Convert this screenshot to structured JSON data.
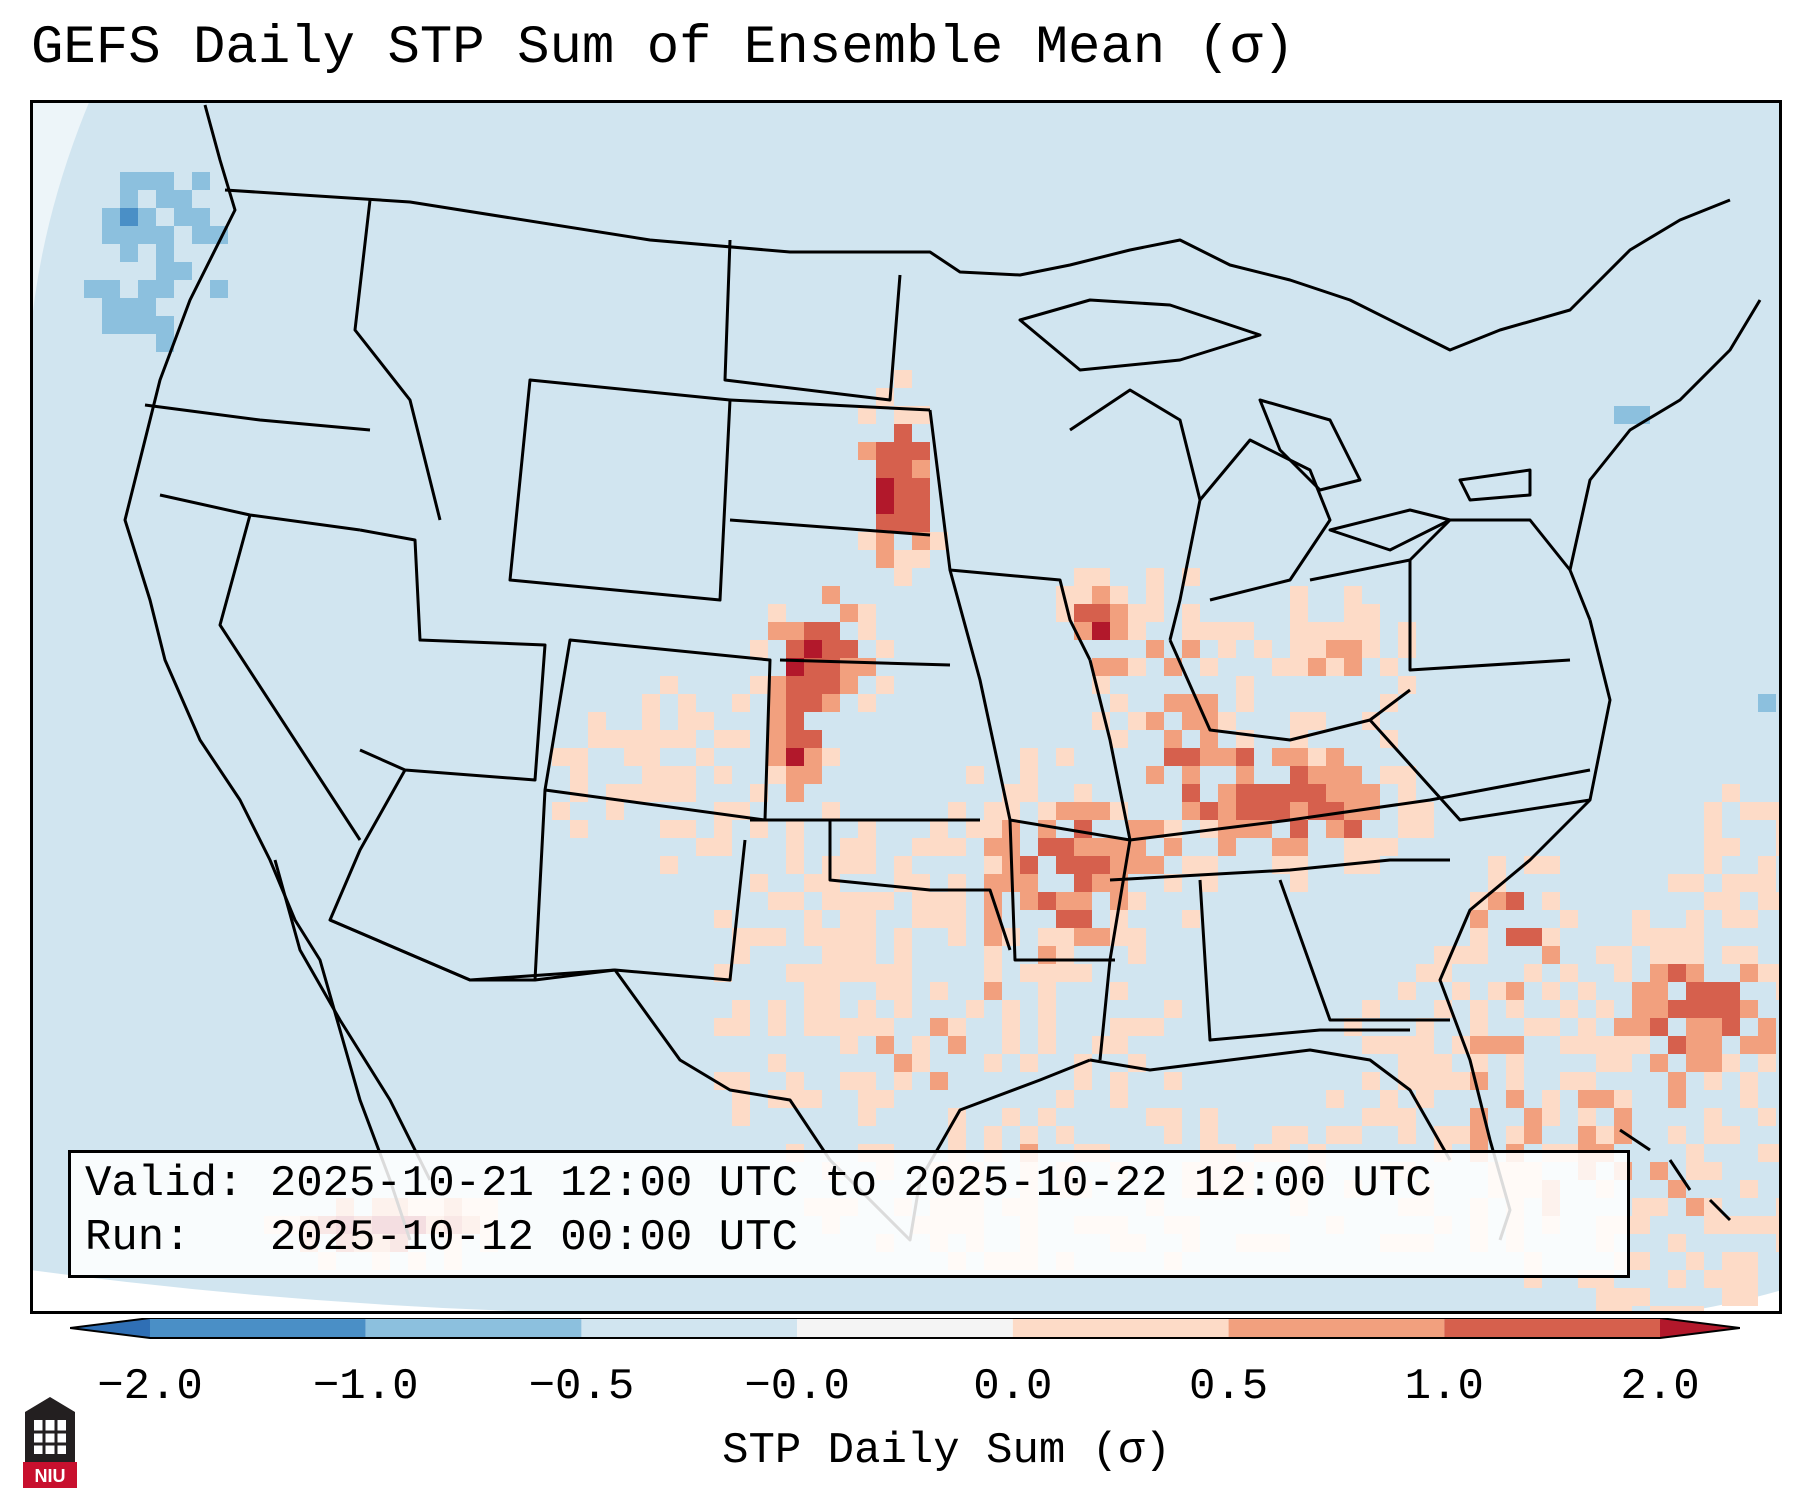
{
  "title": "GEFS Daily STP Sum of Ensemble Mean (σ)",
  "info": {
    "valid_label": "Valid:",
    "valid_value": "2025-10-21 12:00 UTC to 2025-10-22 12:00 UTC",
    "run_label": "Run:",
    "run_value": "2025-10-12 00:00 UTC"
  },
  "colorbar": {
    "label": "STP Daily Sum (σ)",
    "ticks": [
      "−2.0",
      "−1.0",
      "−0.5",
      "−0.0",
      "0.0",
      "0.5",
      "1.0",
      "2.0"
    ],
    "bins": [
      {
        "from": -2.0,
        "to": -1.0,
        "color": "#4a8fc6"
      },
      {
        "from": -1.0,
        "to": -0.5,
        "color": "#8cc0de"
      },
      {
        "from": -0.5,
        "to": -0.0,
        "color": "#d1e5f0"
      },
      {
        "from": -0.0,
        "to": 0.0,
        "color": "#f4f4f4"
      },
      {
        "from": 0.0,
        "to": 0.5,
        "color": "#fddbc7"
      },
      {
        "from": 0.5,
        "to": 1.0,
        "color": "#f2a07e"
      },
      {
        "from": 1.0,
        "to": 2.0,
        "color": "#d6604d"
      }
    ],
    "under_color": "#2f6fb5",
    "over_color": "#b2182b"
  },
  "map": {
    "region": "Continental United States",
    "background_color": "#d1e5f0",
    "features": [
      {
        "name": "central-plains",
        "value": 2.0
      },
      {
        "name": "mid-south",
        "value": 0.8
      },
      {
        "name": "ohio-valley",
        "value": 0.4
      },
      {
        "name": "gulf-coast",
        "value": 0.3
      },
      {
        "name": "pacific-northwest",
        "value": -0.7
      }
    ]
  },
  "logo": {
    "text": "NIU",
    "color": "#c8102e"
  }
}
